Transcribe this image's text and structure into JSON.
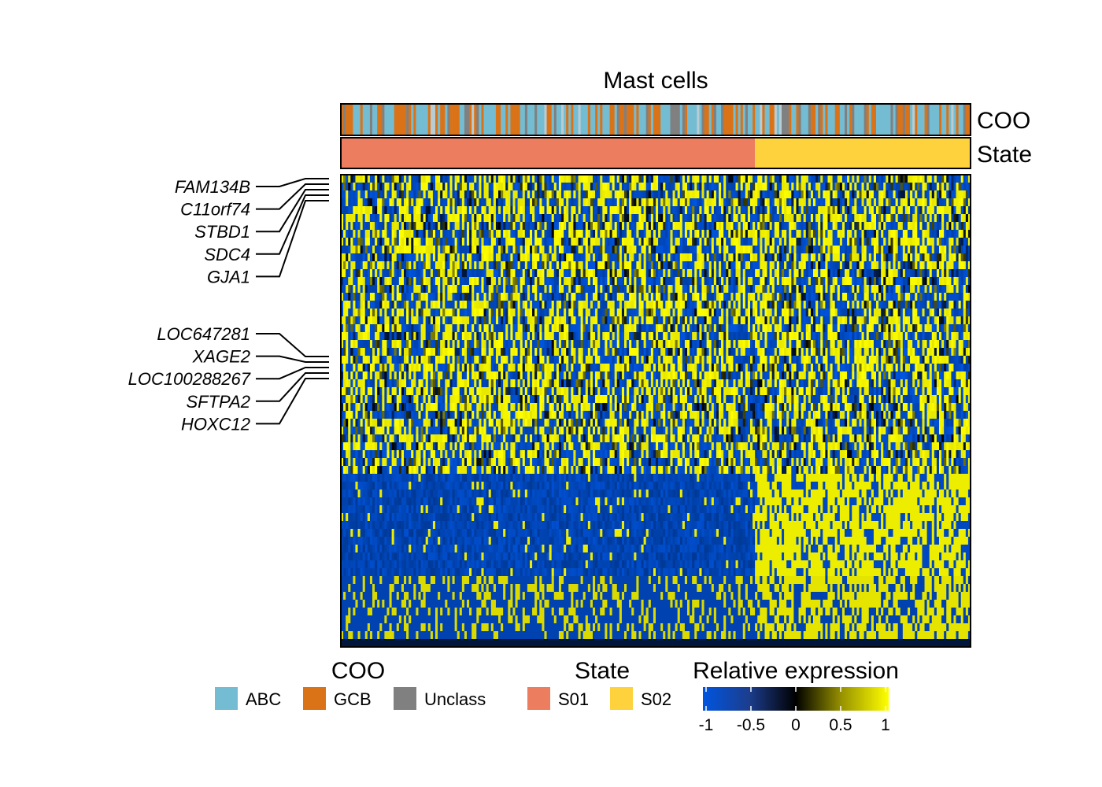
{
  "chart_data": {
    "type": "heatmap",
    "title": "Mast cells",
    "tracks": [
      {
        "key": "coo",
        "label": "COO"
      },
      {
        "key": "state",
        "label": "State"
      }
    ],
    "n_samples": 260,
    "n_genes": 60,
    "state_split_fraction": 0.657,
    "labeled_genes": {
      "upper": [
        "FAM134B",
        "C11orf74",
        "STBD1",
        "SDC4",
        "GJA1"
      ],
      "lower": [
        "LOC647281",
        "XAGE2",
        "LOC100288267",
        "SFTPA2",
        "HOXC12"
      ]
    },
    "legends": {
      "coo": {
        "title": "COO",
        "items": [
          {
            "label": "ABC",
            "color": "#74BCD2"
          },
          {
            "label": "GCB",
            "color": "#DA7318"
          },
          {
            "label": "Unclass",
            "color": "#808080"
          }
        ]
      },
      "state": {
        "title": "State",
        "items": [
          {
            "label": "S01",
            "color": "#EC7D5F"
          },
          {
            "label": "S02",
            "color": "#FED23C"
          }
        ]
      },
      "expression": {
        "title": "Relative expression",
        "ticks": [
          "-1",
          "-0.5",
          "0",
          "0.5",
          "1"
        ],
        "tick_values": [
          -1,
          -0.5,
          0,
          0.5,
          1
        ],
        "color_low": "#0055E0",
        "color_mid": "#000000",
        "color_high": "#FFFF00"
      }
    },
    "color_range": [
      -1,
      1
    ]
  }
}
